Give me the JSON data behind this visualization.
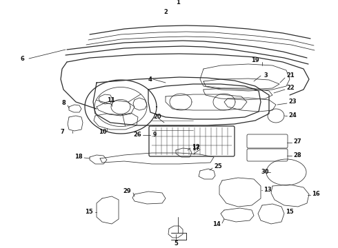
{
  "bg_color": "#ffffff",
  "line_color": "#2a2a2a",
  "label_color": "#111111",
  "figsize": [
    4.9,
    3.6
  ],
  "dpi": 100,
  "lw_main": 0.9,
  "lw_thin": 0.55,
  "lw_label": 0.4,
  "fontsize_label": 6.0,
  "fontweight": "bold"
}
